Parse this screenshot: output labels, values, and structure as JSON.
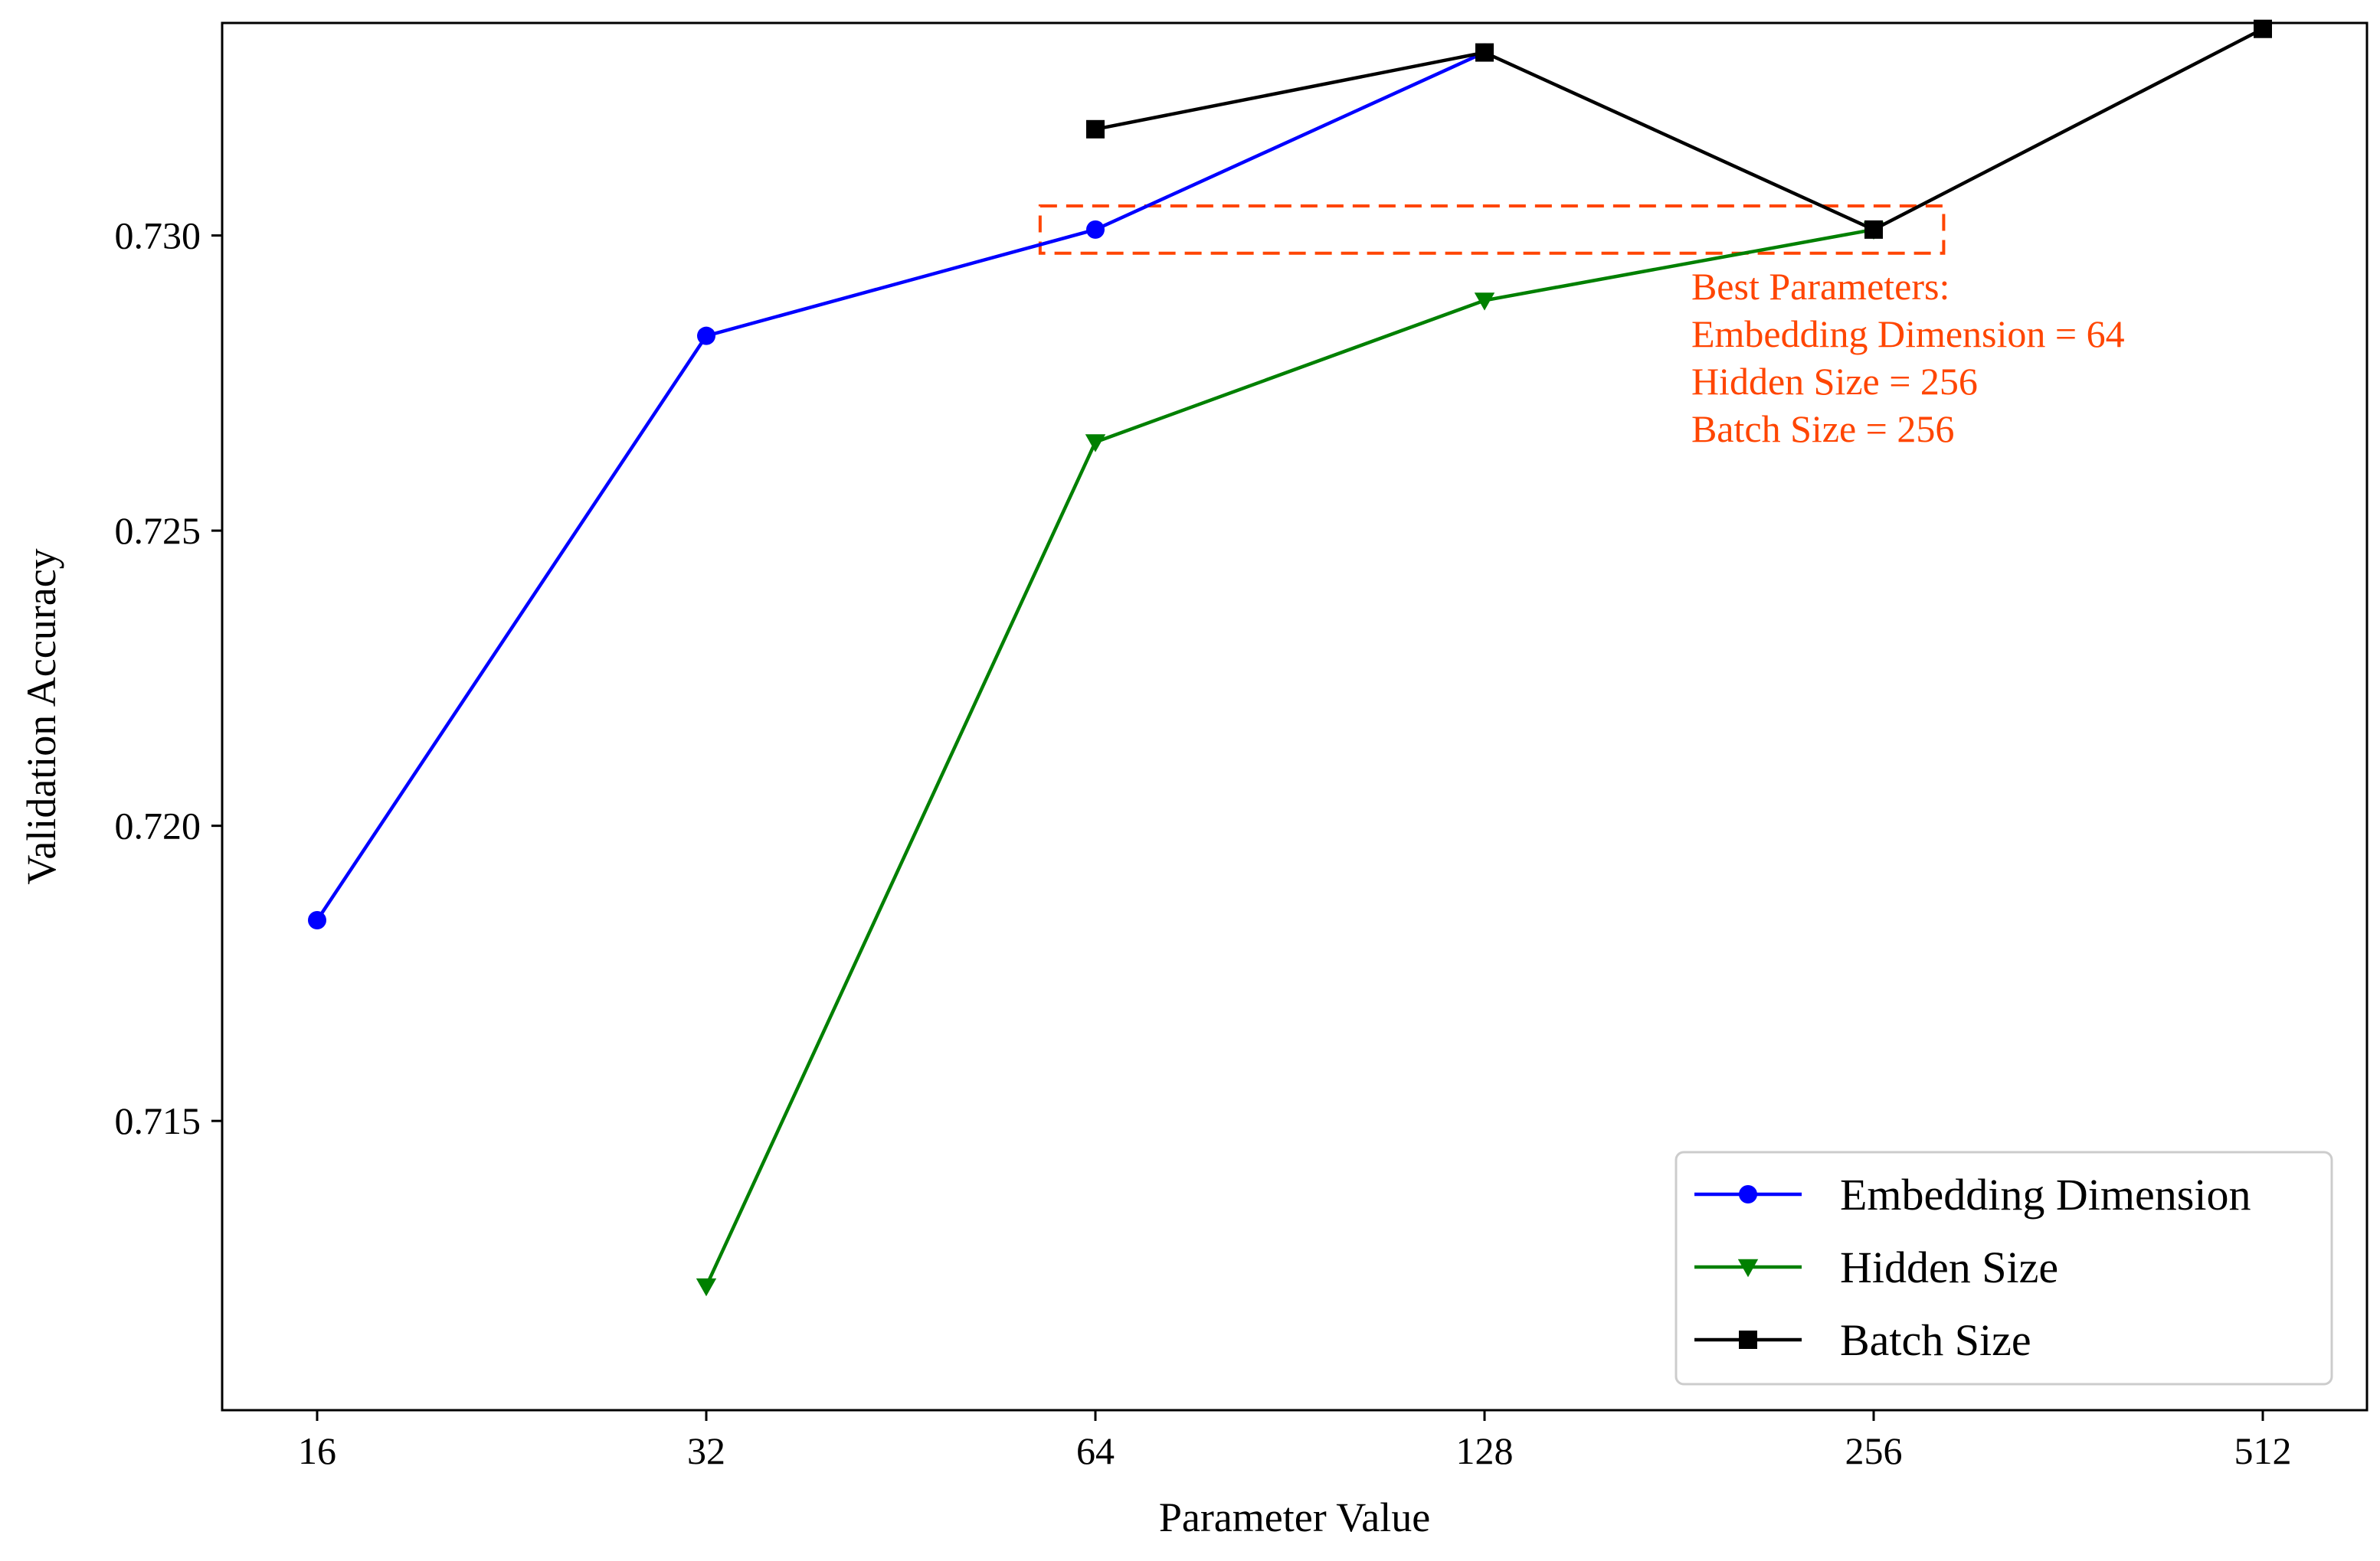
{
  "chart_data": {
    "type": "line",
    "title": "",
    "xlabel": "Parameter Value",
    "ylabel": "Validation Accuracy",
    "x_scale": "log2",
    "x_ticks": [
      16,
      32,
      64,
      128,
      256,
      512
    ],
    "x_tick_labels": [
      "16",
      "32",
      "64",
      "128",
      "256",
      "512"
    ],
    "y_ticks": [
      0.715,
      0.72,
      0.725,
      0.73
    ],
    "y_tick_labels": [
      "0.715",
      "0.720",
      "0.725",
      "0.730"
    ],
    "ylim": [
      0.7101,
      0.7336
    ],
    "grid": false,
    "legend_position": "lower-right",
    "series": [
      {
        "name": "Embedding Dimension",
        "color": "#0000ff",
        "marker": "circle",
        "x": [
          16,
          32,
          64,
          128
        ],
        "y": [
          0.7184,
          0.7283,
          0.7301,
          0.7331
        ]
      },
      {
        "name": "Hidden Size",
        "color": "#008000",
        "marker": "triangle-down",
        "x": [
          32,
          64,
          128,
          256
        ],
        "y": [
          0.7122,
          0.7265,
          0.7289,
          0.7301
        ]
      },
      {
        "name": "Batch Size",
        "color": "#000000",
        "marker": "square",
        "x": [
          64,
          128,
          256,
          512
        ],
        "y": [
          0.7318,
          0.7331,
          0.7301,
          0.7335
        ]
      }
    ],
    "highlight_box": {
      "x_from": 58,
      "x_to": 290,
      "y_from": 0.7297,
      "y_to": 0.7305,
      "color": "#ff4500",
      "style": "dashed"
    },
    "annotation": {
      "color": "#ff4500",
      "anchor_x": 185,
      "anchor_y": 0.7284,
      "lines": [
        "Best Parameters:",
        "Embedding Dimension = 64",
        "Hidden Size = 256",
        "Batch Size = 256"
      ]
    }
  }
}
